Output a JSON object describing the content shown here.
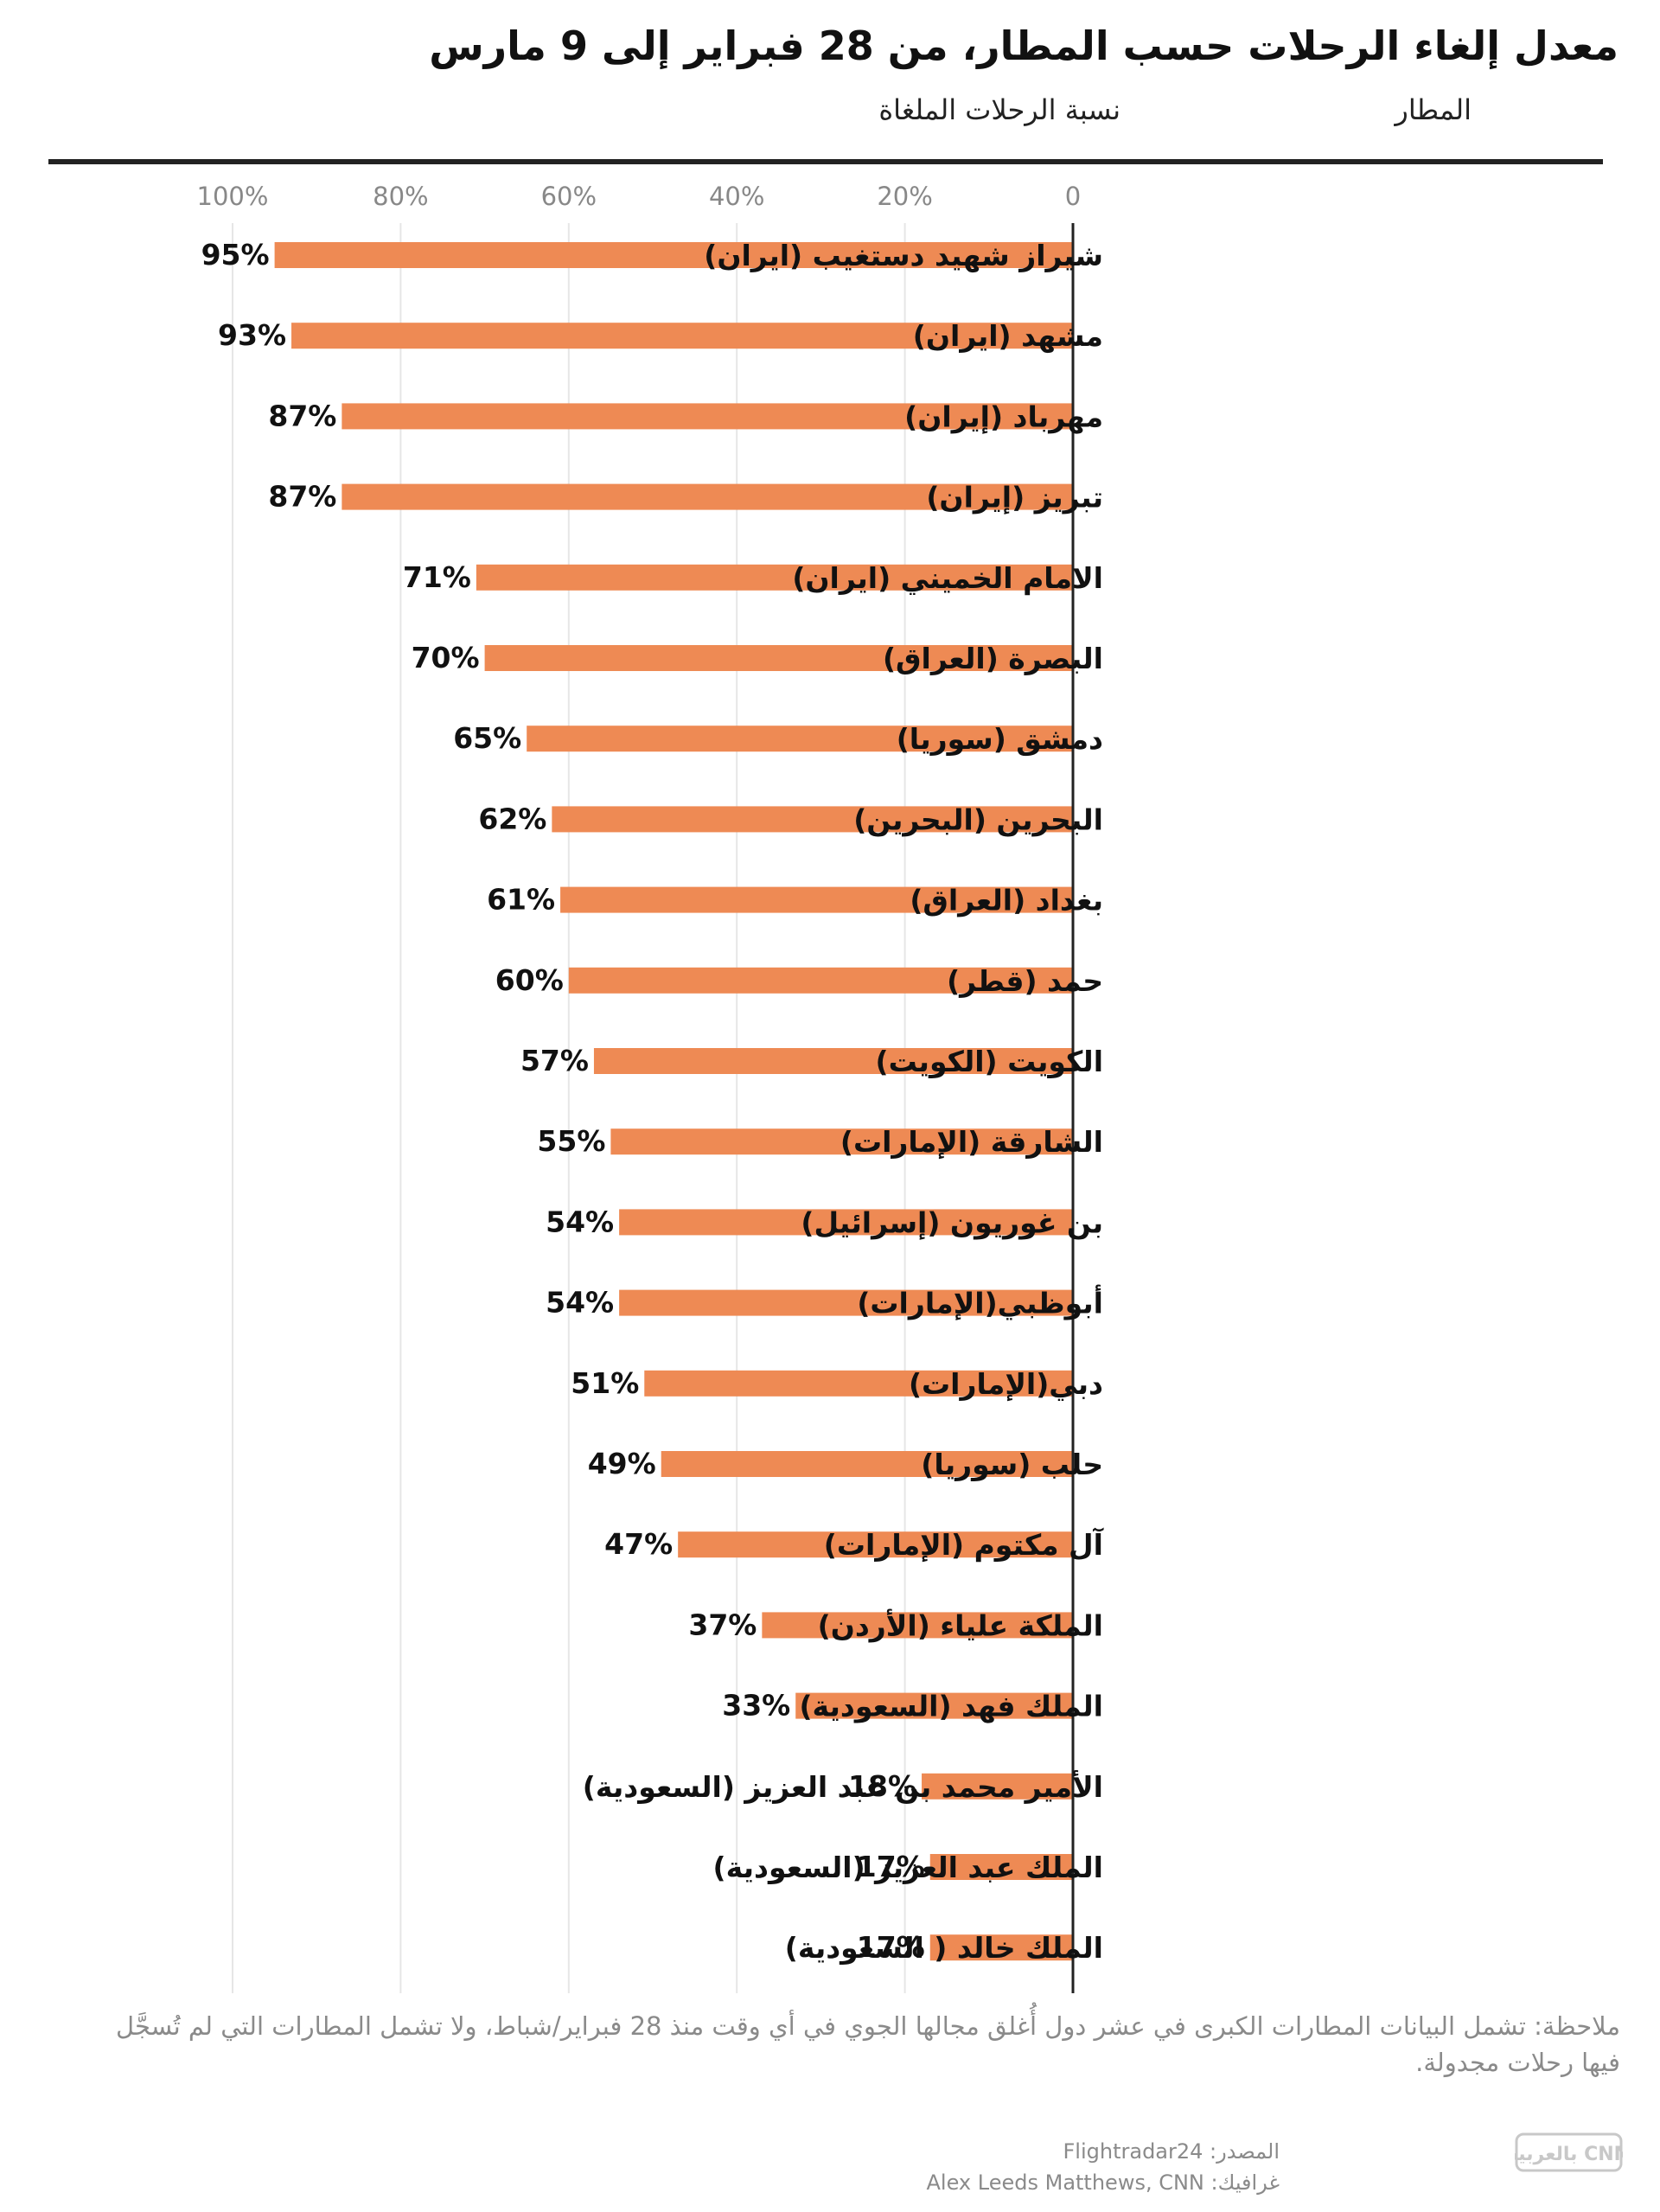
{
  "header": {
    "title": "معدل إلغاء الرحلات حسب المطار، من 28 فبراير إلى 9 مارس",
    "col_airport": "المطار",
    "col_percentage": "نسبة الرحلات الملغاة"
  },
  "chart_data": {
    "type": "bar",
    "orientation": "horizontal",
    "title": "معدل إلغاء الرحلات حسب المطار، من 28 فبراير إلى 9 مارس",
    "xlabel": "نسبة الرحلات الملغاة",
    "ylabel": "المطار",
    "xlim": [
      0,
      100
    ],
    "tick_values": [
      0,
      20,
      40,
      60,
      80,
      100
    ],
    "tick_labels": [
      "0",
      "20%",
      "40%",
      "60%",
      "80%",
      "100%"
    ],
    "categories": [
      "شيراز شهيد دستغيب (ايران)",
      "مشهد (ايران)",
      "مهرباد (إيران)",
      "تبريز (إيران)",
      "الامام الخميني (ايران)",
      "البصرة (العراق)",
      "دمشق (سوريا)",
      "البحرين (البحرين)",
      "بغداد (العراق)",
      "حمد (قطر)",
      "الكويت (الكويت)",
      "الشارقة  (الإمارات)",
      "بن غوريون (إسرائيل)",
      "أبوظبي(الإمارات)",
      "دبي(الإمارات)",
      "حلب (سوريا)",
      "آل مكتوم (الإمارات)",
      "الملكة علياء (الأردن)",
      "الملك فهد (السعودية)",
      "الأمير محمد بن عبد العزيز (السعودية)",
      "الملك عبد العزيز (السعودية)",
      "الملك خالد ( السعودية)"
    ],
    "values": [
      95,
      93,
      87,
      87,
      71,
      70,
      65,
      62,
      61,
      60,
      57,
      55,
      54,
      54,
      51,
      49,
      47,
      37,
      33,
      18,
      17,
      17
    ],
    "value_labels": [
      "95%",
      "93%",
      "87%",
      "87%",
      "71%",
      "70%",
      "65%",
      "62%",
      "61%",
      "60%",
      "57%",
      "55%",
      "54%",
      "54%",
      "51%",
      "49%",
      "47%",
      "37%",
      "33%",
      "18%",
      "17%",
      "17%"
    ],
    "bar_color": "#ee8a54",
    "grid": true
  },
  "footer": {
    "note": "ملاحظة: تشمل البيانات المطارات الكبرى في عشر دول أُغلق مجالها الجوي في أي وقت منذ 28 فبراير/شباط، ولا تشمل المطارات التي لم تُسجَّل فيها رحلات مجدولة.",
    "source": "المصدر: Flightradar24",
    "graphic": "غرافيك: Alex Leeds Matthews, CNN",
    "logo_text": "CNN بالعربية"
  },
  "colors": {
    "bar": "#ee8a54",
    "axis": "#222222",
    "grid": "#e6e6e6",
    "muted": "#8a8a8a"
  }
}
